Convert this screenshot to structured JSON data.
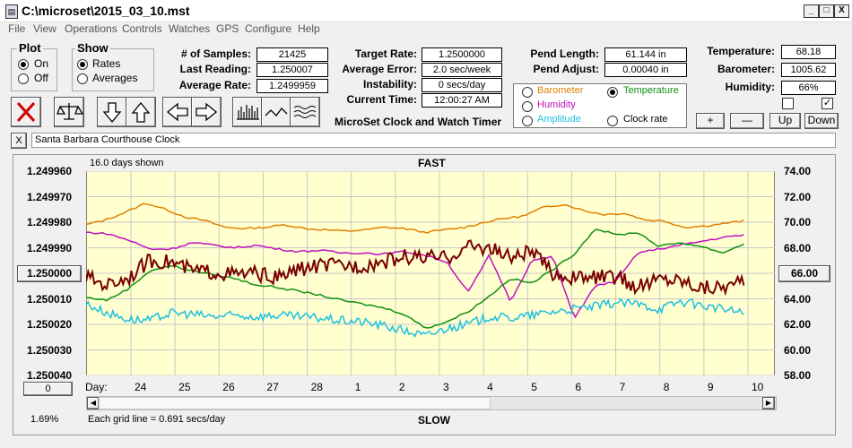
{
  "window": {
    "title": "C:\\microset\\2015_03_10.mst",
    "min": "_",
    "max": "□",
    "close": "X"
  },
  "menu": [
    "File",
    "View",
    "Operations",
    "Controls",
    "Watches",
    "GPS",
    "Configure",
    "Help"
  ],
  "plot_group": {
    "label": "Plot",
    "options": [
      "On",
      "Off"
    ],
    "selected": "On"
  },
  "show_group": {
    "label": "Show",
    "options": [
      "Rates",
      "Averages"
    ],
    "selected": "Rates"
  },
  "stats": {
    "samples_label": "# of Samples:",
    "samples": "21425",
    "last_label": "Last Reading:",
    "last": "1.250007",
    "avg_label": "Average Rate:",
    "avg": "1.2499959",
    "target_label": "Target Rate:",
    "target": "1.2500000",
    "err_label": "Average Error:",
    "err": "2.0 sec/week",
    "inst_label": "Instability:",
    "inst": "0 secs/day",
    "time_label": "Current Time:",
    "time": "12:00:27 AM",
    "pend_len_label": "Pend Length:",
    "pend_len": "61.144 in",
    "pend_adj_label": "Pend Adjust:",
    "pend_adj": "0.00040 in",
    "temp_label": "Temperature:",
    "temp": "68.18",
    "baro_label": "Barometer:",
    "baro": "1005.62",
    "hum_label": "Humidity:",
    "hum": "66%"
  },
  "app_name": "MicroSet Clock and Watch Timer",
  "sensor_options": [
    {
      "label": "Barometer",
      "color": "#e08000",
      "selected": false
    },
    {
      "label": "Temperature",
      "color": "#109010",
      "selected": true
    },
    {
      "label": "Humidity",
      "color": "#c010c0",
      "selected": false
    },
    {
      "label": "Clock rate",
      "color": "#000000",
      "selected": false
    },
    {
      "label": "Amplitude",
      "color": "#20c0e0",
      "selected": false
    }
  ],
  "scale_buttons": {
    "plus": "+",
    "minus": "—",
    "up": "Up",
    "down": "Down"
  },
  "clock_name": "Santa Barbara Courthouse Clock",
  "clear_label": "X",
  "chart_header": {
    "days_shown": "16.0 days shown",
    "fast": "FAST",
    "slow": "SLOW",
    "grid_note": "Each grid line = 0.691 secs/day",
    "percent": "1.69%"
  },
  "left_btn": "1.250000",
  "right_btn": "66.00",
  "zero_btn": "0",
  "day_label": "Day:",
  "chart_data": {
    "type": "line",
    "x_labels": [
      "24",
      "25",
      "26",
      "27",
      "28",
      "1",
      "2",
      "3",
      "4",
      "5",
      "6",
      "7",
      "8",
      "9",
      "10"
    ],
    "y_left_ticks": [
      "1.249960",
      "1.249970",
      "1.249980",
      "1.249990",
      "1.250000",
      "1.250010",
      "1.250020",
      "1.250030",
      "1.250040"
    ],
    "y_right_ticks": [
      "74.00",
      "72.00",
      "70.00",
      "68.00",
      "66.00",
      "64.00",
      "62.00",
      "60.00",
      "58.00"
    ],
    "ylim_left": [
      1.24996,
      1.25004
    ],
    "ylim_right": [
      58,
      74
    ],
    "grid": true,
    "background": "#ffffd0",
    "series": [
      {
        "color": "#e08000",
        "values": [
          69.8,
          70.2,
          70.8,
          71.5,
          71.0,
          70.4,
          70.1,
          69.6,
          69.5,
          69.6,
          69.8,
          69.5,
          69.4,
          69.3,
          69.4,
          69.6,
          69.5,
          69.2,
          69.4,
          69.6,
          70.0,
          70.3,
          70.5,
          71.2,
          71.4,
          70.9,
          70.6,
          70.7,
          70.2,
          70.1,
          69.6,
          69.7,
          69.9,
          70.1
        ]
      },
      {
        "color": "#c010c0",
        "values": [
          69.2,
          69.1,
          68.6,
          67.9,
          67.9,
          68.4,
          68.2,
          68.0,
          68.2,
          67.9,
          67.7,
          67.8,
          67.6,
          67.6,
          67.5,
          67.7,
          67.4,
          66.9,
          64.5,
          67.4,
          63.8,
          67.0,
          67.3,
          62.5,
          65.0,
          65.4,
          67.6,
          67.9,
          68.2,
          68.5,
          68.8,
          69.0
        ]
      },
      {
        "color": "#109010",
        "values": [
          64.1,
          63.9,
          64.8,
          66.2,
          66.6,
          66.2,
          65.9,
          65.6,
          65.1,
          64.9,
          64.6,
          64.3,
          63.9,
          63.6,
          63.3,
          62.8,
          61.7,
          62.2,
          63.0,
          64.2,
          65.6,
          65.2,
          66.3,
          67.5,
          69.5,
          69.0,
          69.2,
          68.1,
          68.4,
          68.1,
          67.6,
          68.3
        ]
      },
      {
        "color": "#20c0e0",
        "values": [
          63.6,
          62.9,
          62.4,
          62.3,
          62.9,
          62.8,
          62.6,
          62.7,
          62.6,
          62.7,
          62.6,
          62.5,
          62.3,
          62.2,
          61.9,
          61.5,
          61.1,
          61.7,
          62.0,
          62.6,
          62.5,
          62.7,
          63.0,
          63.2,
          63.4,
          63.7,
          63.6,
          63.2,
          63.8,
          63.5,
          63.2,
          62.9
        ]
      },
      {
        "color": "#7a0000",
        "values": [
          65.7,
          65.1,
          65.7,
          67.0,
          66.9,
          66.2,
          66.1,
          65.9,
          66.0,
          65.6,
          66.3,
          66.6,
          66.6,
          66.6,
          66.9,
          67.3,
          67.2,
          67.2,
          68.1,
          68.0,
          67.2,
          67.7,
          66.0,
          65.6,
          65.7,
          65.7,
          64.9,
          65.6,
          65.5,
          64.9,
          65.0,
          65.2
        ]
      }
    ]
  }
}
